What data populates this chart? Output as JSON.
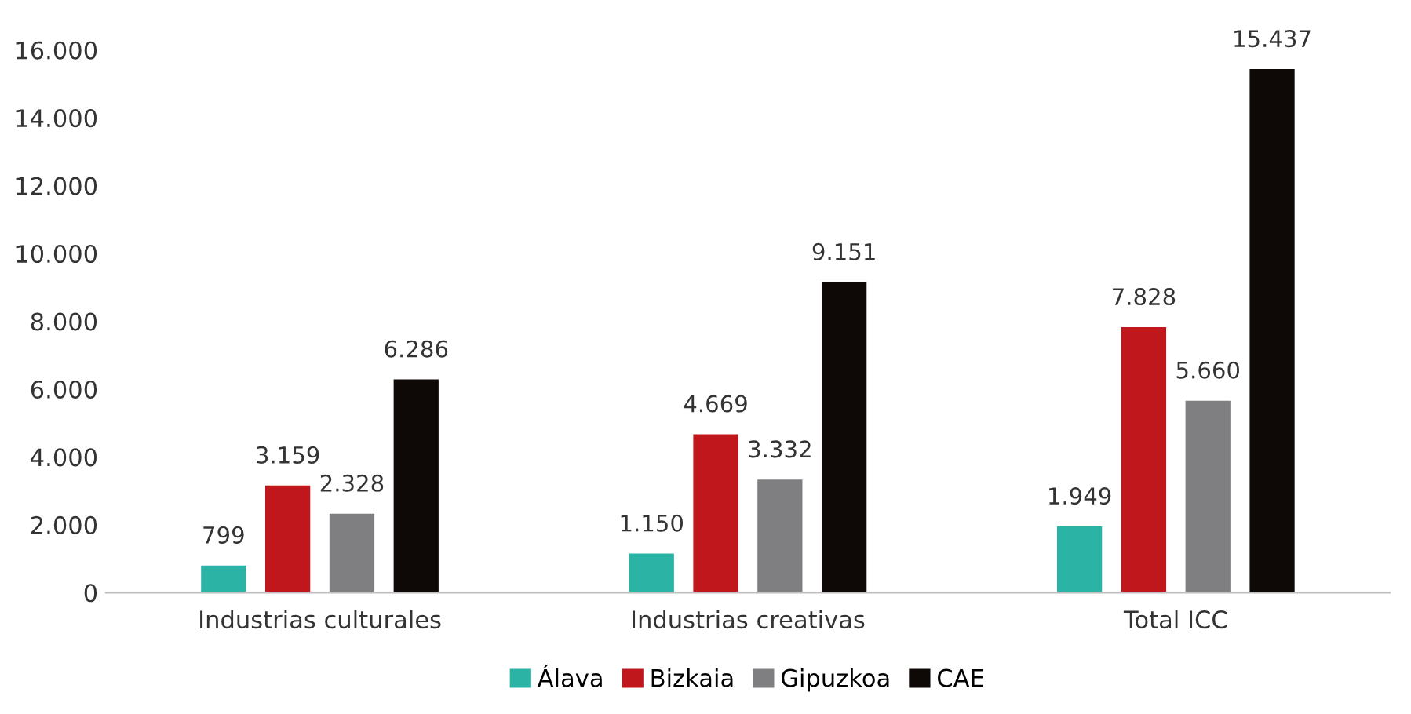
{
  "chart_data": {
    "type": "bar",
    "categories": [
      "Industrias culturales",
      "Industrias creativas",
      "Total ICC"
    ],
    "series": [
      {
        "name": "Álava",
        "color": "#2bb3a6",
        "values": [
          799,
          1150,
          1949
        ],
        "value_labels": [
          "799",
          "1.150",
          "1.949"
        ]
      },
      {
        "name": "Bizkaia",
        "color": "#c0171c",
        "values": [
          3159,
          4669,
          7828
        ],
        "value_labels": [
          "3.159",
          "4.669",
          "7.828"
        ]
      },
      {
        "name": "Gipuzkoa",
        "color": "#7f7f82",
        "values": [
          2328,
          3332,
          5660
        ],
        "value_labels": [
          "2.328",
          "3.332",
          "5.660"
        ]
      },
      {
        "name": "CAE",
        "color": "#0e0907",
        "values": [
          6286,
          9151,
          15437
        ],
        "value_labels": [
          "6.286",
          "9.151",
          "15.437"
        ]
      }
    ],
    "ylim": [
      0,
      16000
    ],
    "yticks": [
      {
        "value": 0,
        "label": "0"
      },
      {
        "value": 2000,
        "label": "2.000"
      },
      {
        "value": 4000,
        "label": "4.000"
      },
      {
        "value": 6000,
        "label": "6.000"
      },
      {
        "value": 8000,
        "label": "8.000"
      },
      {
        "value": 10000,
        "label": "10.000"
      },
      {
        "value": 12000,
        "label": "12.000"
      },
      {
        "value": 14000,
        "label": "14.000"
      },
      {
        "value": 16000,
        "label": "16.000"
      }
    ],
    "grid": false,
    "legend": "bottom"
  }
}
